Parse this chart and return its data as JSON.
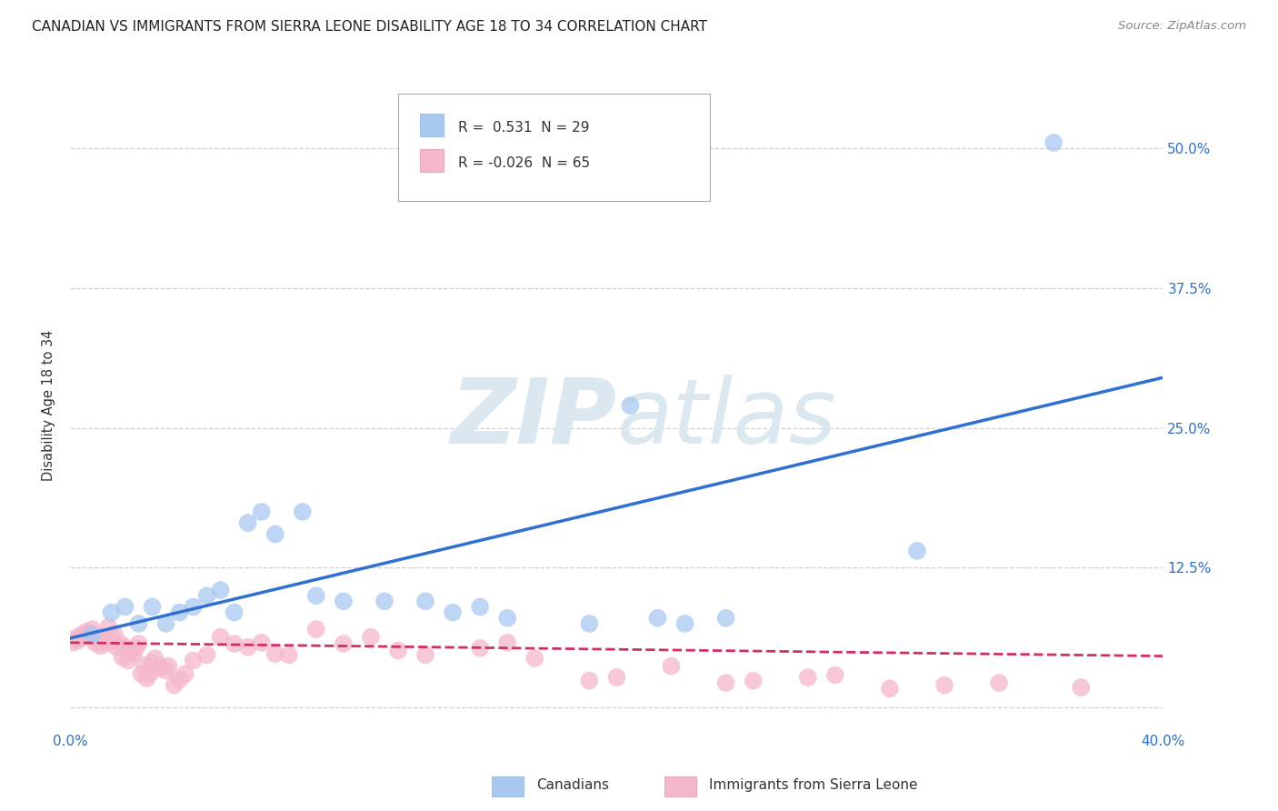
{
  "title": "CANADIAN VS IMMIGRANTS FROM SIERRA LEONE DISABILITY AGE 18 TO 34 CORRELATION CHART",
  "source": "Source: ZipAtlas.com",
  "ylabel": "Disability Age 18 to 34",
  "xlim": [
    0.0,
    0.4
  ],
  "ylim": [
    -0.02,
    0.56
  ],
  "yticks": [
    0.0,
    0.125,
    0.25,
    0.375,
    0.5
  ],
  "ytick_labels": [
    "",
    "12.5%",
    "25.0%",
    "37.5%",
    "50.0%"
  ],
  "xticks": [
    0.0,
    0.1,
    0.2,
    0.3,
    0.4
  ],
  "xtick_labels": [
    "0.0%",
    "",
    "",
    "",
    "40.0%"
  ],
  "canadian_color": "#a8c8f0",
  "sierra_leone_color": "#f5b8cb",
  "canadian_line_color": "#3070d0",
  "sierra_leone_line_color": "#d03060",
  "watermark_color": "#dce8f0",
  "background_color": "#ffffff",
  "grid_color": "#d0d0d0",
  "canadian_scatter_x": [
    0.008,
    0.015,
    0.02,
    0.025,
    0.03,
    0.035,
    0.04,
    0.045,
    0.05,
    0.055,
    0.06,
    0.065,
    0.07,
    0.075,
    0.085,
    0.09,
    0.1,
    0.115,
    0.13,
    0.14,
    0.15,
    0.16,
    0.19,
    0.205,
    0.215,
    0.225,
    0.24,
    0.31,
    0.36
  ],
  "canadian_scatter_y": [
    0.065,
    0.085,
    0.09,
    0.075,
    0.09,
    0.075,
    0.085,
    0.09,
    0.1,
    0.105,
    0.085,
    0.165,
    0.175,
    0.155,
    0.175,
    0.1,
    0.095,
    0.095,
    0.095,
    0.085,
    0.09,
    0.08,
    0.075,
    0.27,
    0.08,
    0.075,
    0.08,
    0.14,
    0.505
  ],
  "sierra_leone_scatter_x": [
    0.001,
    0.002,
    0.003,
    0.004,
    0.005,
    0.006,
    0.007,
    0.008,
    0.009,
    0.01,
    0.011,
    0.012,
    0.013,
    0.014,
    0.015,
    0.016,
    0.017,
    0.018,
    0.019,
    0.02,
    0.021,
    0.022,
    0.023,
    0.024,
    0.025,
    0.026,
    0.027,
    0.028,
    0.029,
    0.03,
    0.031,
    0.032,
    0.033,
    0.035,
    0.036,
    0.038,
    0.04,
    0.042,
    0.045,
    0.05,
    0.055,
    0.06,
    0.065,
    0.07,
    0.075,
    0.08,
    0.09,
    0.1,
    0.11,
    0.12,
    0.13,
    0.15,
    0.16,
    0.17,
    0.19,
    0.2,
    0.22,
    0.24,
    0.25,
    0.27,
    0.28,
    0.3,
    0.32,
    0.34,
    0.37
  ],
  "sierra_leone_scatter_y": [
    0.058,
    0.062,
    0.06,
    0.065,
    0.063,
    0.068,
    0.066,
    0.07,
    0.058,
    0.06,
    0.055,
    0.06,
    0.057,
    0.072,
    0.063,
    0.066,
    0.054,
    0.058,
    0.045,
    0.054,
    0.042,
    0.05,
    0.048,
    0.053,
    0.057,
    0.03,
    0.038,
    0.026,
    0.03,
    0.04,
    0.044,
    0.035,
    0.037,
    0.033,
    0.037,
    0.02,
    0.025,
    0.03,
    0.042,
    0.047,
    0.063,
    0.057,
    0.054,
    0.058,
    0.048,
    0.047,
    0.07,
    0.057,
    0.063,
    0.051,
    0.047,
    0.053,
    0.058,
    0.044,
    0.024,
    0.027,
    0.037,
    0.022,
    0.024,
    0.027,
    0.029,
    0.017,
    0.02,
    0.022,
    0.018
  ],
  "can_line_x0": 0.0,
  "can_line_y0": 0.062,
  "can_line_x1": 0.4,
  "can_line_y1": 0.295,
  "sl_line_x0": 0.0,
  "sl_line_y0": 0.058,
  "sl_line_x1": 0.4,
  "sl_line_y1": 0.046
}
